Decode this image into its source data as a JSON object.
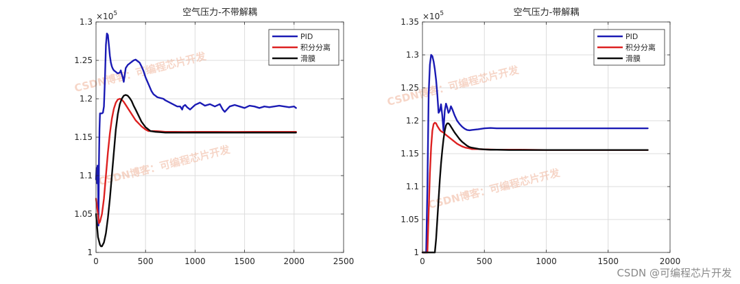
{
  "chart_data": [
    {
      "type": "line",
      "title": "空气压力-不带解耦",
      "exponent_label": "×10",
      "exponent_power": "5",
      "xlim": [
        0,
        2500
      ],
      "ylim": [
        1.0,
        1.3
      ],
      "x_ticks": [
        0,
        500,
        1000,
        1500,
        2000,
        2500
      ],
      "y_ticks": [
        1.0,
        1.05,
        1.1,
        1.15,
        1.2,
        1.25,
        1.3
      ],
      "x_tick_labels": [
        "0",
        "500",
        "1000",
        "1500",
        "2000",
        "2500"
      ],
      "y_tick_labels": [
        "1",
        "1.05",
        "1.1",
        "1.15",
        "1.2",
        "1.25",
        "1.3"
      ],
      "grid": true,
      "legend_position": "top-right",
      "series": [
        {
          "name": "PID",
          "color": "#1a1ab4",
          "x": [
            0,
            5,
            10,
            15,
            20,
            25,
            30,
            35,
            40,
            45,
            50,
            60,
            70,
            80,
            90,
            100,
            110,
            120,
            130,
            140,
            150,
            160,
            170,
            180,
            200,
            220,
            240,
            250,
            260,
            270,
            280,
            300,
            320,
            340,
            360,
            380,
            400,
            420,
            440,
            460,
            480,
            500,
            520,
            540,
            560,
            580,
            600,
            620,
            650,
            680,
            700,
            730,
            760,
            790,
            820,
            850,
            870,
            880,
            900,
            920,
            950,
            1000,
            1050,
            1100,
            1150,
            1200,
            1250,
            1280,
            1300,
            1350,
            1400,
            1450,
            1500,
            1550,
            1600,
            1650,
            1700,
            1750,
            1800,
            1850,
            1900,
            1950,
            2000,
            2020
          ],
          "y": [
            1.095,
            1.11,
            1.09,
            1.113,
            1.1,
            1.035,
            1.12,
            1.16,
            1.181,
            1.181,
            1.181,
            1.181,
            1.182,
            1.19,
            1.225,
            1.27,
            1.285,
            1.283,
            1.27,
            1.256,
            1.247,
            1.242,
            1.239,
            1.237,
            1.235,
            1.233,
            1.234,
            1.237,
            1.232,
            1.228,
            1.222,
            1.24,
            1.244,
            1.246,
            1.248,
            1.25,
            1.251,
            1.249,
            1.247,
            1.242,
            1.236,
            1.228,
            1.222,
            1.216,
            1.21,
            1.206,
            1.204,
            1.202,
            1.201,
            1.2,
            1.198,
            1.196,
            1.194,
            1.192,
            1.19,
            1.19,
            1.186,
            1.19,
            1.192,
            1.189,
            1.186,
            1.192,
            1.195,
            1.191,
            1.193,
            1.19,
            1.193,
            1.186,
            1.183,
            1.19,
            1.192,
            1.19,
            1.188,
            1.191,
            1.19,
            1.188,
            1.19,
            1.189,
            1.19,
            1.191,
            1.19,
            1.189,
            1.19,
            1.188
          ]
        },
        {
          "name": "积分分离",
          "color": "#dd2020",
          "x": [
            0,
            10,
            20,
            30,
            40,
            60,
            80,
            100,
            120,
            140,
            160,
            180,
            200,
            220,
            240,
            260,
            280,
            300,
            320,
            350,
            380,
            400,
            430,
            460,
            500,
            530,
            560,
            600,
            650,
            700,
            800,
            900,
            1000,
            1200,
            1400,
            1600,
            1800,
            2000,
            2020
          ],
          "y": [
            1.07,
            1.06,
            1.05,
            1.038,
            1.04,
            1.05,
            1.07,
            1.1,
            1.13,
            1.155,
            1.174,
            1.187,
            1.195,
            1.199,
            1.2,
            1.199,
            1.196,
            1.192,
            1.188,
            1.182,
            1.176,
            1.172,
            1.168,
            1.164,
            1.16,
            1.158,
            1.158,
            1.158,
            1.1575,
            1.157,
            1.157,
            1.1568,
            1.157,
            1.157,
            1.1568,
            1.157,
            1.157,
            1.157,
            1.157
          ]
        },
        {
          "name": "滑膜",
          "color": "#0a0a0a",
          "x": [
            0,
            20,
            40,
            50,
            60,
            80,
            100,
            120,
            140,
            160,
            180,
            200,
            220,
            240,
            260,
            280,
            300,
            320,
            340,
            360,
            380,
            400,
            430,
            460,
            500,
            550,
            600,
            650,
            700,
            800,
            900,
            1000,
            1200,
            1400,
            1600,
            1800,
            2000,
            2020
          ],
          "y": [
            1.05,
            1.02,
            1.01,
            1.008,
            1.008,
            1.013,
            1.025,
            1.045,
            1.07,
            1.1,
            1.13,
            1.16,
            1.18,
            1.193,
            1.2,
            1.204,
            1.205,
            1.204,
            1.201,
            1.197,
            1.191,
            1.186,
            1.178,
            1.17,
            1.163,
            1.158,
            1.157,
            1.1565,
            1.156,
            1.156,
            1.156,
            1.156,
            1.156,
            1.156,
            1.156,
            1.156,
            1.156,
            1.156
          ]
        }
      ]
    },
    {
      "type": "line",
      "title": "空气压力-带解耦",
      "exponent_label": "×10",
      "exponent_power": "5",
      "xlim": [
        0,
        2000
      ],
      "ylim": [
        1.0,
        1.35
      ],
      "x_ticks": [
        0,
        500,
        1000,
        1500,
        2000
      ],
      "y_ticks": [
        1.0,
        1.05,
        1.1,
        1.15,
        1.2,
        1.25,
        1.3,
        1.35
      ],
      "x_tick_labels": [
        "0",
        "500",
        "1000",
        "1500",
        "2000"
      ],
      "y_tick_labels": [
        "1",
        "1.05",
        "1.1",
        "1.15",
        "1.2",
        "1.25",
        "1.3",
        "1.35"
      ],
      "grid": true,
      "legend_position": "top-right",
      "series": [
        {
          "name": "PID",
          "color": "#1a1ab4",
          "x": [
            0,
            30,
            40,
            50,
            60,
            70,
            80,
            90,
            100,
            110,
            120,
            130,
            140,
            150,
            160,
            170,
            180,
            190,
            200,
            210,
            220,
            230,
            240,
            260,
            280,
            300,
            320,
            340,
            360,
            380,
            400,
            450,
            500,
            550,
            600,
            700,
            800,
            1000,
            1200,
            1400,
            1600,
            1800,
            1820
          ],
          "y": [
            1.0,
            1.0,
            1.1,
            1.24,
            1.285,
            1.3,
            1.298,
            1.29,
            1.278,
            1.262,
            1.24,
            1.212,
            1.215,
            1.225,
            1.208,
            1.185,
            1.215,
            1.226,
            1.22,
            1.212,
            1.215,
            1.222,
            1.218,
            1.208,
            1.2,
            1.195,
            1.191,
            1.188,
            1.186,
            1.1855,
            1.186,
            1.187,
            1.1885,
            1.189,
            1.1885,
            1.1885,
            1.1885,
            1.1885,
            1.1885,
            1.1885,
            1.1885,
            1.1885,
            1.1885
          ]
        },
        {
          "name": "积分分离",
          "color": "#dd2020",
          "x": [
            0,
            40,
            50,
            60,
            70,
            80,
            90,
            100,
            110,
            120,
            130,
            140,
            150,
            160,
            170,
            180,
            200,
            220,
            240,
            260,
            280,
            300,
            320,
            350,
            380,
            400,
            450,
            500,
            600,
            800,
            1000,
            1200,
            1400,
            1600,
            1800,
            1820
          ],
          "y": [
            1.0,
            1.0,
            1.06,
            1.12,
            1.16,
            1.185,
            1.195,
            1.197,
            1.196,
            1.192,
            1.189,
            1.186,
            1.184,
            1.183,
            1.182,
            1.18,
            1.177,
            1.174,
            1.171,
            1.168,
            1.165,
            1.163,
            1.161,
            1.159,
            1.158,
            1.157,
            1.157,
            1.1565,
            1.156,
            1.156,
            1.1555,
            1.1555,
            1.1555,
            1.1555,
            1.1555,
            1.1555
          ]
        },
        {
          "name": "滑膜",
          "color": "#0a0a0a",
          "x": [
            0,
            80,
            100,
            110,
            120,
            130,
            140,
            150,
            160,
            170,
            180,
            190,
            200,
            210,
            220,
            230,
            240,
            250,
            260,
            280,
            300,
            320,
            340,
            360,
            380,
            400,
            430,
            460,
            500,
            550,
            600,
            700,
            800,
            1000,
            1200,
            1400,
            1600,
            1800,
            1820
          ],
          "y": [
            1.0,
            1.0,
            1.0,
            1.02,
            1.05,
            1.08,
            1.11,
            1.135,
            1.155,
            1.172,
            1.185,
            1.193,
            1.196,
            1.196,
            1.194,
            1.191,
            1.188,
            1.185,
            1.182,
            1.177,
            1.172,
            1.168,
            1.165,
            1.162,
            1.16,
            1.159,
            1.158,
            1.157,
            1.1565,
            1.156,
            1.156,
            1.1555,
            1.1555,
            1.1555,
            1.1555,
            1.1555,
            1.1555,
            1.1555,
            1.1555
          ]
        }
      ]
    }
  ],
  "watermark": "CSDN博客：可编程芯片开发",
  "footer": "CSDN @可编程芯片开发"
}
